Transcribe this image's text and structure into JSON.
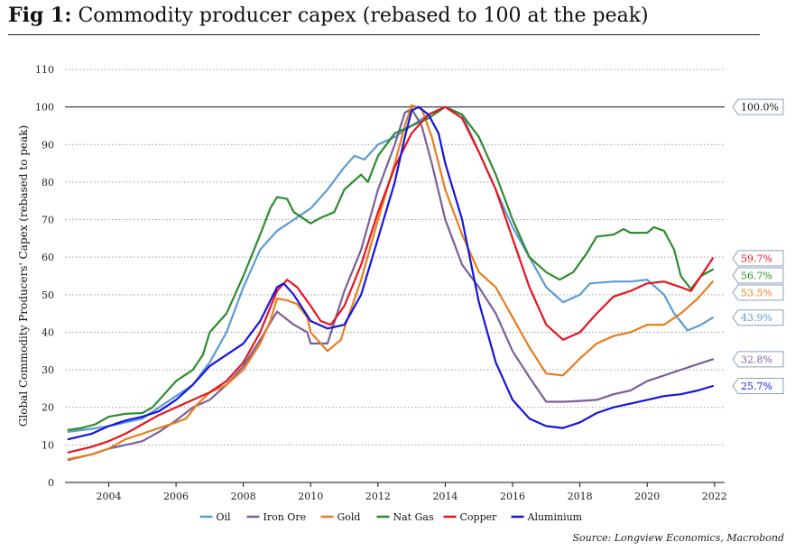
{
  "title_prefix": "Fig 1:",
  "title_text": "Commodity producer capex (rebased to 100 at the peak)",
  "source": "Source: Longview Economics, Macrobond",
  "chart_data": {
    "type": "line",
    "ylabel": "Global Commodity Producers' Capex (rebased to peak)",
    "xlabel": "",
    "xlim": [
      2002.7,
      2022.3
    ],
    "ylim": [
      0,
      110
    ],
    "x_ticks": [
      2004,
      2006,
      2008,
      2010,
      2012,
      2014,
      2016,
      2018,
      2020,
      2022
    ],
    "y_ticks": [
      0,
      10,
      20,
      30,
      40,
      50,
      60,
      70,
      80,
      90,
      100,
      110
    ],
    "grid": true,
    "reference_line": {
      "value": 100,
      "label": "100.0%"
    },
    "legend_position": "bottom",
    "series": [
      {
        "name": "Oil",
        "color": "#5b9bd5",
        "end_label": "43.9%",
        "points": [
          [
            2002.8,
            13.5
          ],
          [
            2003.5,
            14.3
          ],
          [
            2004,
            15
          ],
          [
            2004.5,
            16
          ],
          [
            2005,
            17
          ],
          [
            2005.5,
            20
          ],
          [
            2006,
            23
          ],
          [
            2006.5,
            26
          ],
          [
            2007,
            32
          ],
          [
            2007.5,
            40
          ],
          [
            2008,
            52
          ],
          [
            2008.5,
            62
          ],
          [
            2009,
            67
          ],
          [
            2009.5,
            70
          ],
          [
            2010,
            73
          ],
          [
            2010.5,
            78
          ],
          [
            2011,
            84
          ],
          [
            2011.3,
            87
          ],
          [
            2011.6,
            86
          ],
          [
            2012,
            90
          ],
          [
            2012.5,
            92
          ],
          [
            2013,
            95
          ],
          [
            2013.5,
            98
          ],
          [
            2014,
            100
          ],
          [
            2014.5,
            98
          ],
          [
            2015,
            88
          ],
          [
            2015.5,
            78
          ],
          [
            2016,
            68
          ],
          [
            2016.5,
            60
          ],
          [
            2017,
            52
          ],
          [
            2017.5,
            48
          ],
          [
            2018,
            50
          ],
          [
            2018.3,
            53
          ],
          [
            2019,
            53.5
          ],
          [
            2019.5,
            53.5
          ],
          [
            2020,
            54
          ],
          [
            2020.5,
            50
          ],
          [
            2020.8,
            45
          ],
          [
            2021.2,
            40.5
          ],
          [
            2021.6,
            42
          ],
          [
            2021.95,
            43.9
          ]
        ]
      },
      {
        "name": "Iron Ore",
        "color": "#7a5f9a",
        "end_label": "32.8%",
        "points": [
          [
            2002.8,
            6
          ],
          [
            2003.5,
            7.5
          ],
          [
            2004,
            9
          ],
          [
            2004.5,
            10
          ],
          [
            2005,
            11
          ],
          [
            2005.5,
            13.5
          ],
          [
            2006,
            16.5
          ],
          [
            2006.5,
            20
          ],
          [
            2007,
            22
          ],
          [
            2007.5,
            26
          ],
          [
            2008,
            31
          ],
          [
            2008.5,
            38
          ],
          [
            2009,
            45.5
          ],
          [
            2009.5,
            42
          ],
          [
            2009.9,
            40
          ],
          [
            2010,
            37
          ],
          [
            2010.5,
            37
          ],
          [
            2011,
            51
          ],
          [
            2011.5,
            62
          ],
          [
            2012,
            78
          ],
          [
            2012.5,
            90
          ],
          [
            2012.8,
            98.5
          ],
          [
            2013,
            99.5
          ],
          [
            2013.3,
            95
          ],
          [
            2013.6,
            85
          ],
          [
            2014,
            70
          ],
          [
            2014.5,
            58
          ],
          [
            2015,
            52
          ],
          [
            2015.5,
            45
          ],
          [
            2016,
            35
          ],
          [
            2016.5,
            28
          ],
          [
            2017,
            21.5
          ],
          [
            2017.5,
            21.5
          ],
          [
            2018,
            21.7
          ],
          [
            2018.5,
            22
          ],
          [
            2019,
            23.5
          ],
          [
            2019.5,
            24.5
          ],
          [
            2020,
            27
          ],
          [
            2020.5,
            28.5
          ],
          [
            2021,
            30
          ],
          [
            2021.5,
            31.5
          ],
          [
            2021.95,
            32.8
          ]
        ]
      },
      {
        "name": "Gold",
        "color": "#e87d1e",
        "end_label": "53.5%",
        "points": [
          [
            2002.8,
            6.2
          ],
          [
            2003.5,
            7.5
          ],
          [
            2004,
            9
          ],
          [
            2004.5,
            11.5
          ],
          [
            2005,
            13
          ],
          [
            2005.5,
            14.5
          ],
          [
            2006,
            16
          ],
          [
            2006.3,
            17
          ],
          [
            2006.6,
            20.5
          ],
          [
            2007,
            24
          ],
          [
            2007.5,
            26
          ],
          [
            2008,
            30
          ],
          [
            2008.5,
            37
          ],
          [
            2008.8,
            43
          ],
          [
            2009,
            49
          ],
          [
            2009.3,
            48.5
          ],
          [
            2009.6,
            47.5
          ],
          [
            2009.9,
            44
          ],
          [
            2010,
            40
          ],
          [
            2010.5,
            35
          ],
          [
            2010.9,
            38
          ],
          [
            2011,
            41
          ],
          [
            2011.5,
            54
          ],
          [
            2012,
            70
          ],
          [
            2012.5,
            85
          ],
          [
            2012.8,
            95
          ],
          [
            2013,
            100.5
          ],
          [
            2013.3,
            99.5
          ],
          [
            2013.6,
            92
          ],
          [
            2014,
            78
          ],
          [
            2014.5,
            66
          ],
          [
            2015,
            56
          ],
          [
            2015.5,
            52
          ],
          [
            2016,
            44
          ],
          [
            2016.5,
            36
          ],
          [
            2017,
            29
          ],
          [
            2017.5,
            28.5
          ],
          [
            2018,
            33
          ],
          [
            2018.5,
            37
          ],
          [
            2019,
            39
          ],
          [
            2019.5,
            40
          ],
          [
            2020,
            42
          ],
          [
            2020.5,
            42
          ],
          [
            2021,
            45
          ],
          [
            2021.5,
            49
          ],
          [
            2021.95,
            53.5
          ]
        ]
      },
      {
        "name": "Nat Gas",
        "color": "#2e8b2e",
        "end_label": "56.7%",
        "points": [
          [
            2002.8,
            14
          ],
          [
            2003.2,
            14.5
          ],
          [
            2003.6,
            15.5
          ],
          [
            2004,
            17.5
          ],
          [
            2004.5,
            18.3
          ],
          [
            2005,
            18.5
          ],
          [
            2005.3,
            20
          ],
          [
            2005.6,
            23
          ],
          [
            2006,
            27
          ],
          [
            2006.5,
            30
          ],
          [
            2006.8,
            34
          ],
          [
            2007,
            40
          ],
          [
            2007.5,
            45
          ],
          [
            2008,
            55
          ],
          [
            2008.5,
            66
          ],
          [
            2008.8,
            73
          ],
          [
            2009,
            76
          ],
          [
            2009.3,
            75.5
          ],
          [
            2009.5,
            72
          ],
          [
            2010,
            69
          ],
          [
            2010.3,
            70.5
          ],
          [
            2010.7,
            72
          ],
          [
            2011,
            78
          ],
          [
            2011.5,
            82
          ],
          [
            2011.7,
            80
          ],
          [
            2012,
            87
          ],
          [
            2012.5,
            93
          ],
          [
            2013,
            95
          ],
          [
            2013.5,
            97
          ],
          [
            2014,
            100
          ],
          [
            2014.5,
            98
          ],
          [
            2015,
            92
          ],
          [
            2015.5,
            82
          ],
          [
            2016,
            70
          ],
          [
            2016.5,
            60
          ],
          [
            2017,
            56
          ],
          [
            2017.4,
            54
          ],
          [
            2017.8,
            56
          ],
          [
            2018.2,
            61
          ],
          [
            2018.5,
            65.5
          ],
          [
            2019,
            66
          ],
          [
            2019.3,
            67.5
          ],
          [
            2019.5,
            66.5
          ],
          [
            2020,
            66.5
          ],
          [
            2020.2,
            68
          ],
          [
            2020.5,
            67
          ],
          [
            2020.8,
            62
          ],
          [
            2021,
            55
          ],
          [
            2021.3,
            51.5
          ],
          [
            2021.6,
            55
          ],
          [
            2021.95,
            56.7
          ]
        ]
      },
      {
        "name": "Copper",
        "color": "#e8141e",
        "end_label": "59.7%",
        "points": [
          [
            2002.8,
            8
          ],
          [
            2003.5,
            9.5
          ],
          [
            2004,
            11
          ],
          [
            2004.5,
            13
          ],
          [
            2005,
            15.5
          ],
          [
            2005.5,
            18
          ],
          [
            2006,
            20
          ],
          [
            2006.5,
            22
          ],
          [
            2007,
            24
          ],
          [
            2007.5,
            27
          ],
          [
            2008,
            32
          ],
          [
            2008.5,
            40
          ],
          [
            2009,
            51
          ],
          [
            2009.3,
            54
          ],
          [
            2009.6,
            52
          ],
          [
            2010,
            47
          ],
          [
            2010.3,
            43
          ],
          [
            2010.6,
            42
          ],
          [
            2011,
            47
          ],
          [
            2011.5,
            58
          ],
          [
            2012,
            72
          ],
          [
            2012.5,
            84
          ],
          [
            2013,
            93
          ],
          [
            2013.5,
            98
          ],
          [
            2014,
            100
          ],
          [
            2014.5,
            97
          ],
          [
            2015,
            88
          ],
          [
            2015.5,
            78
          ],
          [
            2016,
            65
          ],
          [
            2016.5,
            52
          ],
          [
            2017,
            42
          ],
          [
            2017.5,
            38
          ],
          [
            2018,
            40
          ],
          [
            2018.5,
            45
          ],
          [
            2019,
            49.5
          ],
          [
            2019.5,
            51
          ],
          [
            2020,
            53
          ],
          [
            2020.5,
            53.5
          ],
          [
            2021,
            52
          ],
          [
            2021.3,
            51
          ],
          [
            2021.6,
            55
          ],
          [
            2021.95,
            59.7
          ]
        ]
      },
      {
        "name": "Aluminium",
        "color": "#1414e0",
        "end_label": "25.7%",
        "points": [
          [
            2002.8,
            11.5
          ],
          [
            2003.5,
            13
          ],
          [
            2004,
            15
          ],
          [
            2004.5,
            16.5
          ],
          [
            2005,
            17.5
          ],
          [
            2005.5,
            19
          ],
          [
            2006,
            22
          ],
          [
            2006.5,
            26
          ],
          [
            2007,
            31
          ],
          [
            2007.5,
            34
          ],
          [
            2008,
            37
          ],
          [
            2008.5,
            43
          ],
          [
            2009,
            52
          ],
          [
            2009.2,
            53
          ],
          [
            2009.5,
            50
          ],
          [
            2010,
            43
          ],
          [
            2010.5,
            41
          ],
          [
            2011,
            42
          ],
          [
            2011.5,
            50
          ],
          [
            2012,
            65
          ],
          [
            2012.5,
            80
          ],
          [
            2012.8,
            92
          ],
          [
            2013,
            99
          ],
          [
            2013.2,
            100
          ],
          [
            2013.5,
            98
          ],
          [
            2013.8,
            93
          ],
          [
            2014,
            85
          ],
          [
            2014.5,
            70
          ],
          [
            2015,
            48
          ],
          [
            2015.5,
            32
          ],
          [
            2016,
            22
          ],
          [
            2016.5,
            17
          ],
          [
            2017,
            15
          ],
          [
            2017.5,
            14.5
          ],
          [
            2018,
            16
          ],
          [
            2018.5,
            18.5
          ],
          [
            2019,
            20
          ],
          [
            2019.5,
            21
          ],
          [
            2020,
            22
          ],
          [
            2020.5,
            23
          ],
          [
            2021,
            23.5
          ],
          [
            2021.5,
            24.5
          ],
          [
            2021.95,
            25.7
          ]
        ]
      }
    ]
  }
}
